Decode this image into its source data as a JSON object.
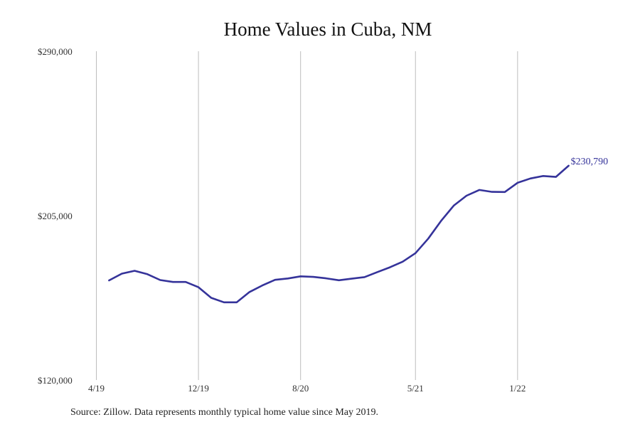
{
  "chart_data": {
    "type": "line",
    "title": "Home Values in Cuba, NM",
    "xlabel": "",
    "ylabel": "",
    "x_tick_labels": [
      "4/19",
      "12/19",
      "8/20",
      "5/21",
      "1/22"
    ],
    "y_tick_labels": [
      "$290,000",
      "$205,000",
      "$120,000"
    ],
    "y_ticks": [
      290000,
      205000,
      120000
    ],
    "ylim": [
      120000,
      290000
    ],
    "xlim": [
      "2019-04",
      "2022-05"
    ],
    "grid": "vertical lines at x tick labels",
    "line_color": "#35339a",
    "end_label": "$230,790",
    "series": [
      {
        "x": [
          "2019-05",
          "2019-06",
          "2019-07",
          "2019-08",
          "2019-09",
          "2019-10",
          "2019-11",
          "2019-12",
          "2020-01",
          "2020-02",
          "2020-03",
          "2020-04",
          "2020-05",
          "2020-06",
          "2020-07",
          "2020-08",
          "2020-09",
          "2020-10",
          "2020-11",
          "2020-12",
          "2021-01",
          "2021-02",
          "2021-03",
          "2021-04",
          "2021-05",
          "2021-06",
          "2021-07",
          "2021-08",
          "2021-09",
          "2021-10",
          "2021-11",
          "2021-12",
          "2022-01",
          "2022-02",
          "2022-03",
          "2022-04",
          "2022-05"
        ],
        "values": [
          171500,
          175000,
          176500,
          174700,
          171700,
          170700,
          170700,
          168000,
          162500,
          160200,
          160200,
          165500,
          168900,
          171800,
          172500,
          173600,
          173300,
          172600,
          171600,
          172400,
          173200,
          175800,
          178300,
          181200,
          185600,
          193100,
          202200,
          210200,
          215300,
          218300,
          217300,
          217200,
          222000,
          224200,
          225500,
          225000,
          230790
        ]
      }
    ]
  },
  "source_note": "Source: Zillow. Data represents monthly typical home value since May 2019."
}
